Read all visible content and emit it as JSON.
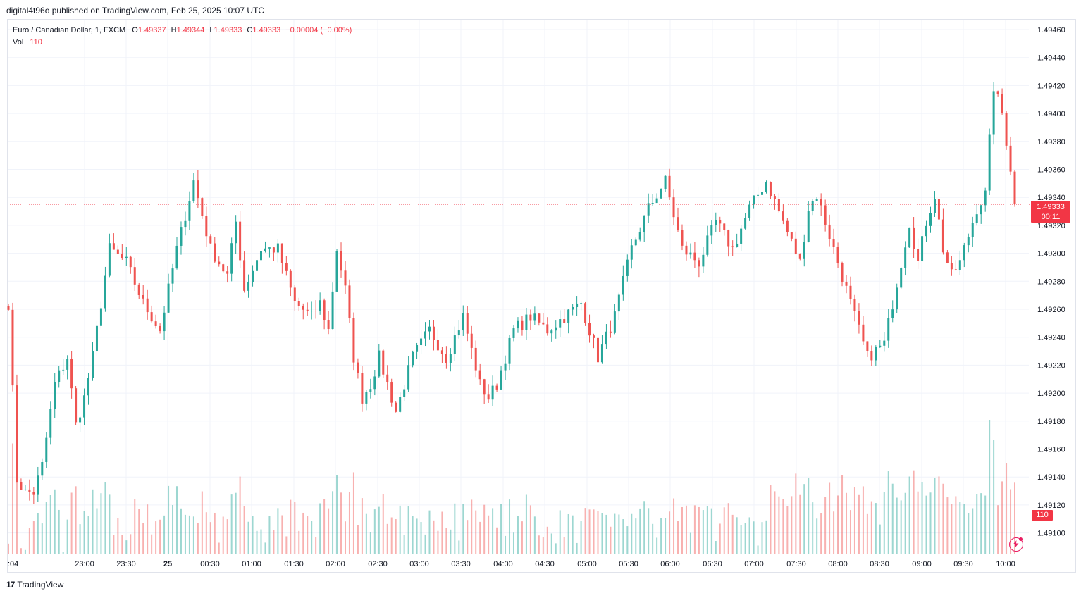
{
  "header": {
    "publish_line": "digital4t96o published on TradingView.com, Feb 25, 2025 10:07 UTC"
  },
  "legend": {
    "symbol": "Euro / Canadian Dollar, 1, FXCM",
    "o_label": "O",
    "o_value": "1.49337",
    "h_label": "H",
    "h_value": "1.49344",
    "l_label": "L",
    "l_value": "1.49333",
    "c_label": "C",
    "c_value": "1.49333",
    "change": "−0.00004 (−0.00%)",
    "vol_label": "Vol",
    "vol_value": "110"
  },
  "price_tag": {
    "price": "1.49333",
    "countdown": "00:11"
  },
  "vol_tag": "110",
  "watermark": {
    "text": "TradingView",
    "logo": "17"
  },
  "colors": {
    "up": "#26a69a",
    "down": "#ef5350",
    "tag": "#f23645",
    "grid": "#f0f3fa",
    "accent": "#e91e63"
  },
  "icons": {
    "bolt_button": "lightning-bolt-icon",
    "logo": "tradingview-logo-icon"
  },
  "chart_data": {
    "type": "candlestick",
    "title": "Euro / Canadian Dollar, 1, FXCM",
    "ylim": [
      1.4909,
      1.49462
    ],
    "y_ticks": [
      "1.49460",
      "1.49440",
      "1.49420",
      "1.49400",
      "1.49380",
      "1.49360",
      "1.49340",
      "1.49320",
      "1.49300",
      "1.49280",
      "1.49260",
      "1.49240",
      "1.49220",
      "1.49200",
      "1.49180",
      "1.49160",
      "1.49140",
      "1.49120",
      "1.49100"
    ],
    "x_ticks": [
      ":04",
      "23:00",
      "23:30",
      "25",
      "00:30",
      "01:00",
      "01:30",
      "02:00",
      "02:30",
      "03:00",
      "03:30",
      "04:00",
      "04:30",
      "05:00",
      "05:30",
      "06:00",
      "06:30",
      "07:00",
      "07:30",
      "08:00",
      "08:30",
      "09:00",
      "09:30",
      "10:00"
    ],
    "last_price": 1.49333,
    "bar_interval": "1 minute",
    "bar_count": 240,
    "path_anchors_minutes": [
      0,
      2,
      4,
      6,
      8,
      11,
      14,
      16,
      18,
      20,
      22,
      24,
      28,
      32,
      36,
      40,
      44,
      48,
      52,
      54,
      56,
      60,
      64,
      68,
      72,
      74,
      76,
      78,
      80,
      82,
      84,
      86,
      88,
      92,
      96,
      100,
      104,
      108,
      112,
      114,
      116,
      120,
      124,
      128,
      132,
      136,
      140,
      144,
      148,
      152,
      156,
      160,
      164,
      168,
      172,
      176,
      180,
      184,
      188,
      190,
      192,
      196,
      200,
      204,
      208,
      210,
      212,
      214,
      216,
      218,
      220,
      222,
      224,
      226,
      228,
      230,
      232,
      234,
      236,
      238,
      239
    ],
    "path_anchors_price": [
      1.4926,
      1.4913,
      1.4912,
      1.4912,
      1.4914,
      1.492,
      1.4922,
      1.4917,
      1.4919,
      1.4922,
      1.4926,
      1.493,
      1.4929,
      1.4926,
      1.4924,
      1.493,
      1.4935,
      1.493,
      1.4928,
      1.4932,
      1.4927,
      1.493,
      1.493,
      1.4926,
      1.4925,
      1.4926,
      1.4924,
      1.493,
      1.4927,
      1.4922,
      1.4919,
      1.492,
      1.4922,
      1.4918,
      1.4922,
      1.4924,
      1.4922,
      1.4925,
      1.492,
      1.4919,
      1.492,
      1.4924,
      1.4925,
      1.4924,
      1.4925,
      1.4926,
      1.4922,
      1.4925,
      1.493,
      1.4933,
      1.4935,
      1.493,
      1.4929,
      1.4932,
      1.493,
      1.4933,
      1.4935,
      1.4932,
      1.4929,
      1.4933,
      1.4934,
      1.493,
      1.4926,
      1.4922,
      1.4923,
      1.4926,
      1.4929,
      1.4932,
      1.4929,
      1.4932,
      1.4934,
      1.493,
      1.4928,
      1.4929,
      1.4931,
      1.4933,
      1.4934,
      1.4942,
      1.494,
      1.4936,
      1.49333
    ],
    "volume_ylim": [
      0,
      190
    ]
  }
}
